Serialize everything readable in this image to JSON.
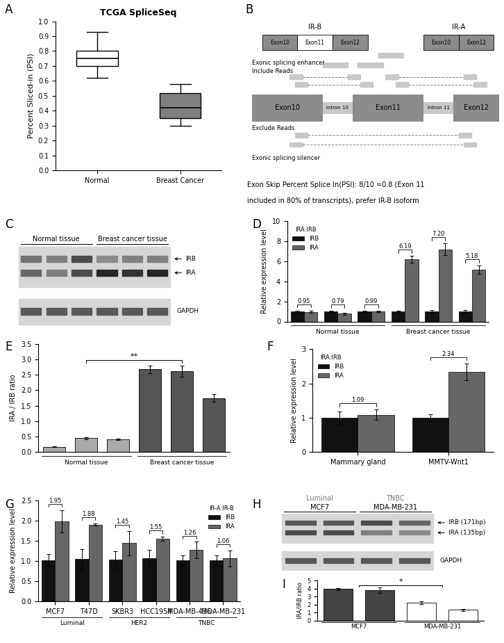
{
  "chart_data": [
    {
      "panel_label": "A",
      "type": "box",
      "title": "TCGA SpliceSeq",
      "y_label": "Percent Sliced-in (PSI)",
      "categories": [
        "Normal",
        "Breast Cancer"
      ],
      "boxes": [
        {
          "whislo": 0.62,
          "q1": 0.7,
          "med": 0.75,
          "q3": 0.8,
          "whishi": 0.93
        },
        {
          "whislo": 0.3,
          "q1": 0.35,
          "med": 0.42,
          "q3": 0.52,
          "whishi": 0.58
        }
      ],
      "colors": [
        "#ffffff",
        "#808080"
      ],
      "ylim": [
        0.0,
        1.0
      ],
      "yticks": [
        {
          "value": 0.0,
          "label": "0.0"
        },
        {
          "value": 0.1,
          "label": "0.1"
        },
        {
          "value": 0.2,
          "label": "0.2"
        },
        {
          "value": 0.3,
          "label": "0.3"
        },
        {
          "value": 0.4,
          "label": "0.4"
        },
        {
          "value": 0.5,
          "label": "0.5"
        },
        {
          "value": 0.6,
          "label": "0.6"
        },
        {
          "value": 0.7,
          "label": "0.7"
        },
        {
          "value": 0.8,
          "label": "0.8"
        },
        {
          "value": 0.9,
          "label": "0.9"
        },
        {
          "value": 1.0,
          "label": "1.0"
        }
      ]
    },
    {
      "panel_label": "D",
      "type": "bar",
      "y_label": "Relative expression level",
      "categories": [
        null,
        null,
        null,
        null,
        null,
        null
      ],
      "group_labels": [
        "Normal tissue",
        "Breast cancer tissue"
      ],
      "series": [
        {
          "name": "IRB",
          "color": "#111111",
          "values": [
            1.0,
            1.0,
            1.0,
            1.0,
            1.0,
            1.0
          ],
          "errors": [
            0.1,
            0.08,
            0.07,
            0.1,
            0.12,
            0.12
          ]
        },
        {
          "name": "IRA",
          "color": "#666666",
          "values": [
            0.95,
            0.79,
            0.99,
            6.19,
            7.2,
            5.18
          ],
          "errors": [
            0.1,
            0.1,
            0.08,
            0.35,
            0.6,
            0.4
          ]
        }
      ],
      "ratio_labels": [
        "0.95",
        "0.79",
        "0.99",
        "6.19",
        "7.20",
        "5.18"
      ],
      "legend_title": "IRA:IRB",
      "legend": "upper left",
      "ylim": [
        0,
        10
      ],
      "yticks": [
        0,
        2,
        4,
        6,
        8,
        10
      ]
    },
    {
      "panel_label": "E",
      "type": "bar",
      "y_label": "IRA / IRB ratio",
      "categories": [
        null,
        null,
        null,
        null,
        null,
        null
      ],
      "group_labels": [
        "Normal tissue",
        "Breast cancer tissue"
      ],
      "values": [
        0.17,
        0.45,
        0.41,
        2.68,
        2.62,
        1.75
      ],
      "errors": [
        0.01,
        0.03,
        0.03,
        0.13,
        0.18,
        0.12
      ],
      "colors": [
        "#aaaaaa",
        "#aaaaaa",
        "#aaaaaa",
        "#555555",
        "#555555",
        "#555555"
      ],
      "significance": "**",
      "ylim": [
        0.0,
        3.5
      ],
      "yticks": [
        {
          "value": 0.0,
          "label": "0.0"
        },
        {
          "value": 0.5,
          "label": "0.5"
        },
        {
          "value": 1.0,
          "label": "1.0"
        },
        {
          "value": 1.5,
          "label": "1.5"
        },
        {
          "value": 2.0,
          "label": "2.0"
        },
        {
          "value": 2.5,
          "label": "2.5"
        },
        {
          "value": 3.0,
          "label": "3.0"
        },
        {
          "value": 3.5,
          "label": "3.5"
        }
      ]
    },
    {
      "panel_label": "F",
      "type": "bar",
      "y_label": "Relative expression level",
      "categories": [
        "Mammary gland",
        "MMTV-Wnt1"
      ],
      "series": [
        {
          "name": "IRB",
          "color": "#111111",
          "values": [
            1.0,
            1.0
          ],
          "errors": [
            0.18,
            0.1
          ]
        },
        {
          "name": "IRA",
          "color": "#666666",
          "values": [
            1.09,
            2.34
          ],
          "errors": [
            0.15,
            0.25
          ]
        }
      ],
      "ratio_labels": [
        "1.09",
        "2.34"
      ],
      "legend_title": "IRA:IRB",
      "legend": "upper left",
      "ylim": [
        0,
        3
      ],
      "yticks": [
        0,
        1,
        2,
        3
      ]
    },
    {
      "panel_label": "G",
      "type": "bar",
      "y_label": "Relative expression level",
      "categories": [
        "MCF7",
        "T47D",
        "SKBR3",
        "HCC1954",
        "MDA-MB-436",
        "MDA-MB-231"
      ],
      "group_labels": [
        "Luminal",
        "HER2",
        "TNBC"
      ],
      "series": [
        {
          "name": "IRB",
          "color": "#111111",
          "values": [
            1.02,
            1.04,
            1.03,
            1.07,
            1.02,
            1.01
          ],
          "errors": [
            0.15,
            0.25,
            0.2,
            0.2,
            0.12,
            0.12
          ]
        },
        {
          "name": "IRA",
          "color": "#666666",
          "values": [
            1.98,
            1.9,
            1.44,
            1.55,
            1.27,
            1.06
          ],
          "errors": [
            0.28,
            0.03,
            0.3,
            0.05,
            0.2,
            0.2
          ]
        }
      ],
      "ratio_labels": [
        "1.95",
        "1.88",
        "1.45",
        "1.55",
        "1.26",
        "1.06"
      ],
      "legend_title": "IR-A:IR-B",
      "legend": "upper right",
      "ylim": [
        0.0,
        2.5
      ],
      "yticks": [
        {
          "value": 0.0,
          "label": "0.0"
        },
        {
          "value": 0.5,
          "label": "0.5"
        },
        {
          "value": 1.0,
          "label": "1.0"
        },
        {
          "value": 1.5,
          "label": "1.5"
        },
        {
          "value": 2.0,
          "label": "2.0"
        },
        {
          "value": 2.5,
          "label": "2.5"
        }
      ]
    },
    {
      "panel_label": "I",
      "type": "bar",
      "y_label": "IRA/IRB ratio",
      "categories": [
        null,
        null,
        null,
        null
      ],
      "group_labels": [
        "MCF7",
        "MDA-MB-231"
      ],
      "values": [
        3.95,
        3.78,
        2.25,
        1.33
      ],
      "errors": [
        0.15,
        0.35,
        0.18,
        0.1
      ],
      "colors": [
        "#444444",
        "#444444",
        "#ffffff",
        "#ffffff"
      ],
      "significance": "*",
      "ylim": [
        0,
        5
      ],
      "yticks": [
        0,
        1,
        2,
        3,
        4,
        5
      ]
    }
  ],
  "diagram_B": {
    "panel_label": "B",
    "isoforms": [
      {
        "name": "IR-B",
        "exons": [
          "Exon10",
          "Exon11",
          "Exon12"
        ]
      },
      {
        "name": "IR-A",
        "exons": [
          "Exon10",
          "Exon12"
        ]
      }
    ],
    "gene": [
      "Exon10",
      "Intron 10",
      "Exon11",
      "Intron 11",
      "Exon12"
    ],
    "enhancer": "Exonic splicing enhancer",
    "include": "Include Reads",
    "exclude": "Exclude Reads",
    "silencer": "Exonic splicing silencer",
    "note": [
      "Exon Skip Percent Splice In(PSI): 8/10 =0.8 (Exon 11",
      "included in 80% of transcripts), prefer IR-B isoform"
    ]
  },
  "gel_C": {
    "panel_label": "C",
    "lane_groups": [
      "Normal tissue",
      "Breast cancer tissue"
    ],
    "bands": [
      "IRB",
      "IRA"
    ],
    "loading_control": "GAPDH"
  },
  "gel_H": {
    "panel_label": "H",
    "subtypes": [
      "Luminal",
      "TNBC"
    ],
    "lane_groups": [
      "MCF7",
      "MDA-MB-231"
    ],
    "bands": [
      "IRB (171bp)",
      "IRA (135bp)"
    ],
    "loading_control": "GAPDH"
  }
}
